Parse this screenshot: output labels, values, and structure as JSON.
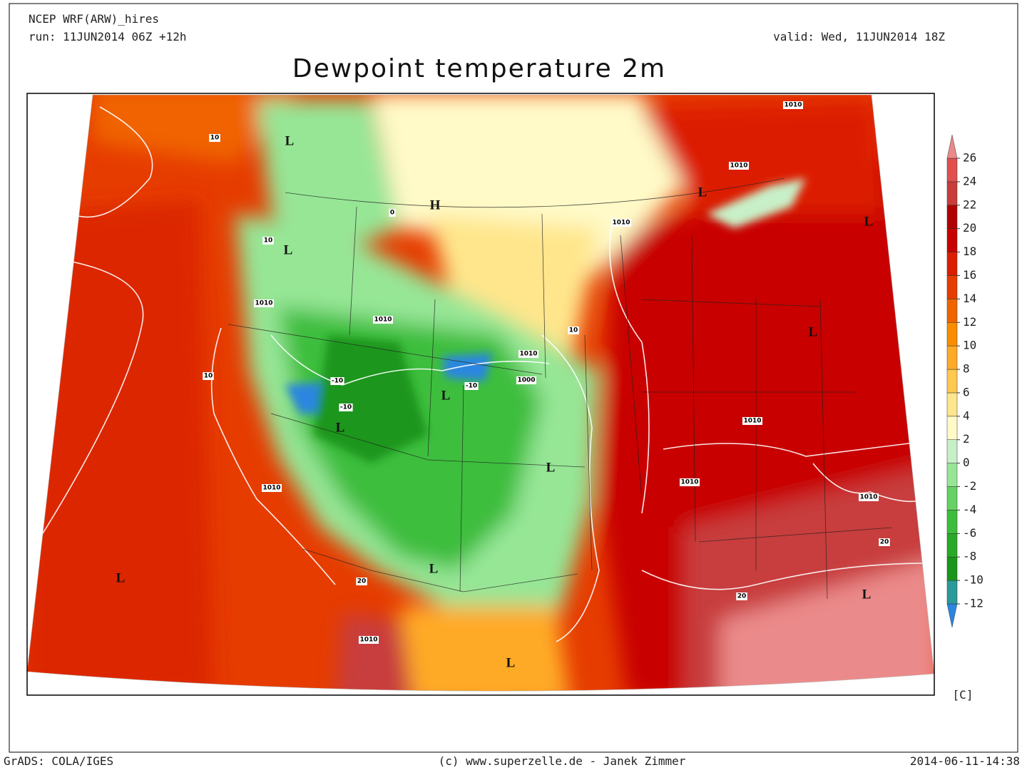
{
  "header": {
    "model": "NCEP WRF(ARW)_hires",
    "run": "run: 11JUN2014 06Z +12h",
    "valid": "valid: Wed, 11JUN2014 18Z",
    "title": "Dewpoint temperature 2m"
  },
  "colorbar": {
    "levels": [
      -12,
      -10,
      -8,
      -6,
      -4,
      -2,
      0,
      2,
      4,
      6,
      8,
      10,
      12,
      14,
      16,
      18,
      20,
      22,
      24,
      26
    ],
    "colors": [
      "#2a86e0",
      "#2a9a9a",
      "#1a961a",
      "#28aa28",
      "#3cbe3c",
      "#64d264",
      "#96e696",
      "#c8f0c8",
      "#fffac8",
      "#ffe68c",
      "#ffc850",
      "#ffaa28",
      "#fa8c00",
      "#f06400",
      "#e63c00",
      "#dc1e00",
      "#c80000",
      "#b00000",
      "#c83c3c",
      "#e05050",
      "#eb8a8a"
    ],
    "unit": "[C]"
  },
  "map_labels": {
    "systems": [
      "L",
      "L",
      "H",
      "L",
      "L",
      "L",
      "L",
      "L",
      "L",
      "L",
      "L",
      "L",
      "L"
    ],
    "contours": [
      "1010",
      "1010",
      "1010",
      "1010",
      "1010",
      "1010",
      "1000",
      "1010",
      "1010",
      "1010",
      "1010",
      "1010",
      "10",
      "10",
      "10",
      "10",
      "-10",
      "-10",
      "-10",
      "20",
      "20",
      "20",
      "0"
    ]
  },
  "footer": {
    "left": "GrADS: COLA/IGES",
    "center": "(c) www.superzelle.de - Janek Zimmer",
    "right": "2014-06-11-14:38"
  }
}
